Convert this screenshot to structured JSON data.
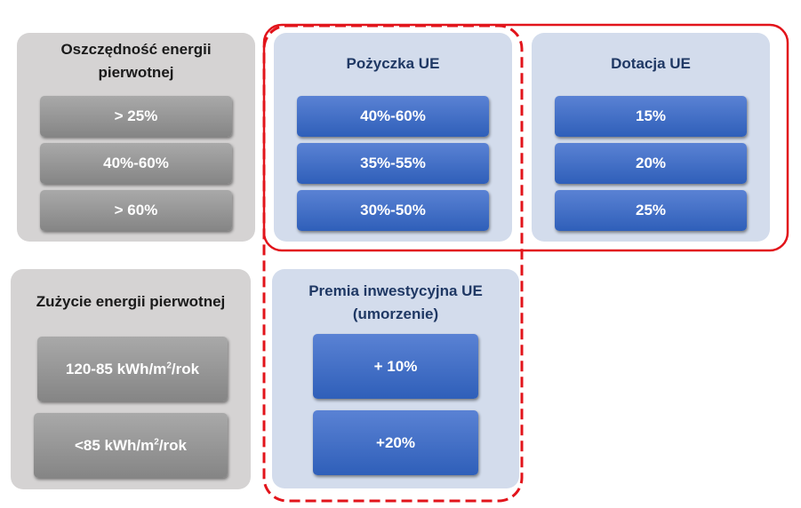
{
  "energy_savings": {
    "title": "Oszczędność energii pierwotnej",
    "items": [
      "> 25%",
      "40%-60%",
      "> 60%"
    ]
  },
  "loan": {
    "title": "Pożyczka UE",
    "items": [
      "40%-60%",
      "35%-55%",
      "30%-50%"
    ]
  },
  "grant": {
    "title": "Dotacja UE",
    "items": [
      "15%",
      "20%",
      "25%"
    ]
  },
  "consumption": {
    "title": "Zużycie energii pierwotnej",
    "items": [
      {
        "prefix": "120-85 kWh/m",
        "sup": "2",
        "suffix": "/rok"
      },
      {
        "prefix": "<85 kWh/m",
        "sup": "2",
        "suffix": "/rok"
      }
    ]
  },
  "premium": {
    "title_line1": "Premia inwestycyjna UE",
    "title_line2": "(umorzenie)",
    "items": [
      "+ 10%",
      "+20%"
    ]
  },
  "colors": {
    "gray_panel": "#d5d3d3",
    "blue_panel": "#d3dcec",
    "blue_box": "#3a68c3",
    "gray_box": "#969696",
    "outline_red": "#e2141b",
    "title_navy": "#1f3864"
  }
}
